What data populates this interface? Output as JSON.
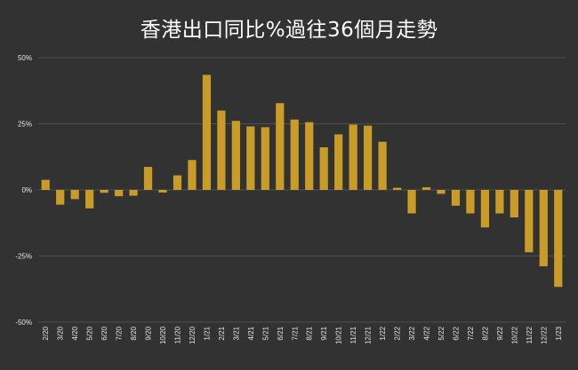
{
  "chart_data": {
    "type": "bar",
    "title": "香港出口同比%過往36個月走勢",
    "xlabel": "",
    "ylabel": "",
    "ylim": [
      -50,
      50
    ],
    "yticks": [
      50,
      25,
      0,
      -25,
      -50
    ],
    "ytick_labels": [
      "50%",
      "25%",
      "0%",
      "-25%",
      "-50%"
    ],
    "grid": true,
    "legend": "none",
    "categories": [
      "2/20",
      "3/20",
      "4/20",
      "5/20",
      "6/20",
      "7/20",
      "8/20",
      "9/20",
      "10/20",
      "11/20",
      "12/20",
      "1/21",
      "2/21",
      "3/21",
      "4/21",
      "5/21",
      "6/21",
      "7/21",
      "8/21",
      "9/21",
      "10/21",
      "11/21",
      "12/21",
      "1/22",
      "2/22",
      "3/22",
      "4/22",
      "5/22",
      "6/22",
      "7/22",
      "8/22",
      "9/22",
      "10/22",
      "11/22",
      "12/22",
      "1/23"
    ],
    "values": [
      3.8,
      -5.6,
      -3.5,
      -7.0,
      -1.1,
      -2.4,
      -2.2,
      8.7,
      -1.0,
      5.5,
      11.3,
      43.5,
      30.0,
      26.1,
      24.0,
      23.7,
      32.8,
      26.6,
      25.6,
      16.1,
      21.0,
      24.7,
      24.3,
      18.2,
      0.8,
      -8.9,
      1.0,
      -1.5,
      -6.0,
      -8.9,
      -14.2,
      -8.9,
      -10.4,
      -23.6,
      -28.9,
      -36.7
    ],
    "colors": {
      "bar": "#C99B27",
      "background": "#323232",
      "grid": "#5a5a5a",
      "text": "#e6e6e6",
      "title": "#ffffff"
    }
  }
}
